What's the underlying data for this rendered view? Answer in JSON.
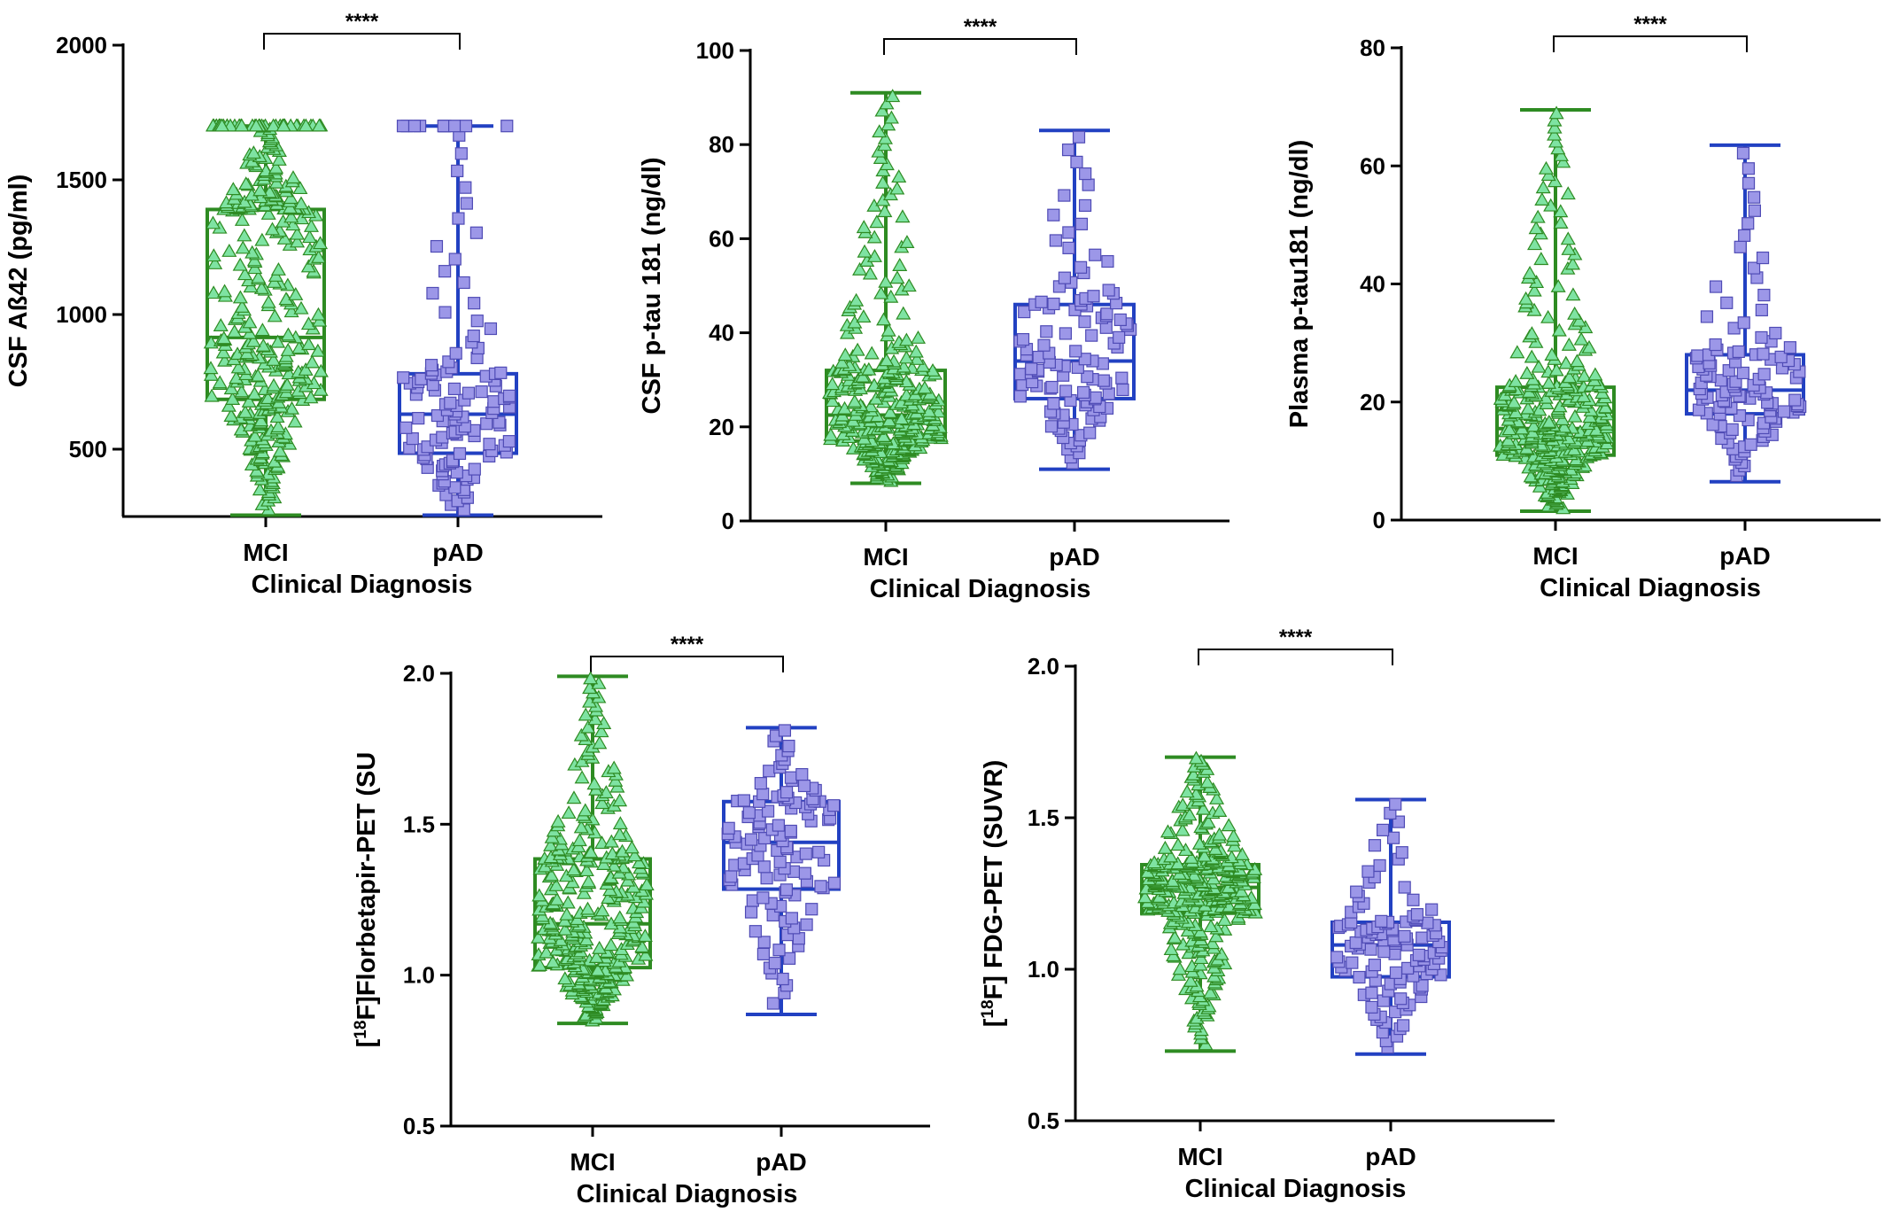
{
  "colors": {
    "mci_fill": "#7ee3a2",
    "mci_stroke": "#2e8b22",
    "pad_fill": "#9c97e8",
    "pad_stroke": "#2241c2",
    "axis": "#000000"
  },
  "marker_shapes": {
    "MCI": "triangle",
    "pAD": "square"
  },
  "chart_data": [
    {
      "type": "box",
      "title": "",
      "xlabel": "Clinical Diagnosis",
      "ylabel": "CSF Aß42 (pg/ml)",
      "ylim": [
        250,
        2000
      ],
      "yticks": [
        "500",
        "1000",
        "1500",
        "2000"
      ],
      "categories": [
        "MCI",
        "pAD"
      ],
      "significance": "****",
      "boxes": [
        {
          "category": "MCI",
          "min": 255,
          "q1": 685,
          "median": 915,
          "q3": 1390,
          "max": 1700,
          "n_points": 330
        },
        {
          "category": "pAD",
          "min": 255,
          "q1": 485,
          "median": 630,
          "q3": 780,
          "max": 1700,
          "n_points": 115
        }
      ]
    },
    {
      "type": "box",
      "title": "",
      "xlabel": "Clinical Diagnosis",
      "ylabel": "CSF p-tau 181 (ng/dl)",
      "ylim": [
        0,
        100
      ],
      "yticks": [
        "0",
        "20",
        "40",
        "60",
        "80",
        "100"
      ],
      "categories": [
        "MCI",
        "pAD"
      ],
      "significance": "****",
      "boxes": [
        {
          "category": "MCI",
          "min": 8,
          "q1": 17,
          "median": 22.5,
          "q3": 32,
          "max": 91,
          "n_points": 330
        },
        {
          "category": "pAD",
          "min": 11,
          "q1": 26,
          "median": 34,
          "q3": 46,
          "max": 83,
          "n_points": 115
        }
      ]
    },
    {
      "type": "box",
      "title": "",
      "xlabel": "Clinical Diagnosis",
      "ylabel": "Plasma p-tau181 (ng/dl)",
      "ylim": [
        0,
        80
      ],
      "yticks": [
        "0",
        "20",
        "40",
        "60",
        "80"
      ],
      "categories": [
        "MCI",
        "pAD"
      ],
      "significance": "****",
      "boxes": [
        {
          "category": "MCI",
          "min": 1.5,
          "q1": 11,
          "median": 15.5,
          "q3": 22.5,
          "max": 69.5,
          "n_points": 330
        },
        {
          "category": "pAD",
          "min": 6.5,
          "q1": 18,
          "median": 22,
          "q3": 28,
          "max": 63.5,
          "n_points": 115
        }
      ]
    },
    {
      "type": "box",
      "title": "",
      "xlabel": "Clinical Diagnosis",
      "ylabel": "[18F]Florbetapir-PET (SU",
      "ylabel_parts": {
        "open": "[",
        "sup": "18",
        "rest": "F]Florbetapir-PET (SU"
      },
      "ylim": [
        0.5,
        2.0
      ],
      "yticks": [
        "0.5",
        "1.0",
        "1.5",
        "2.0"
      ],
      "categories": [
        "MCI",
        "pAD"
      ],
      "significance": "****",
      "boxes": [
        {
          "category": "MCI",
          "min": 0.84,
          "q1": 1.025,
          "median": 1.17,
          "q3": 1.385,
          "max": 1.99,
          "n_points": 330
        },
        {
          "category": "pAD",
          "min": 0.87,
          "q1": 1.285,
          "median": 1.44,
          "q3": 1.575,
          "max": 1.82,
          "n_points": 115
        }
      ]
    },
    {
      "type": "box",
      "title": "",
      "xlabel": "Clinical Diagnosis",
      "ylabel": "[18F] FDG-PET (SUVR)",
      "ylabel_parts": {
        "open": "[",
        "sup": "18",
        "rest": "F] FDG-PET (SUVR)"
      },
      "ylim": [
        0.5,
        2.0
      ],
      "yticks": [
        "0.5",
        "1.0",
        "1.5",
        "2.0"
      ],
      "categories": [
        "MCI",
        "pAD"
      ],
      "significance": "****",
      "boxes": [
        {
          "category": "MCI",
          "min": 0.73,
          "q1": 1.185,
          "median": 1.27,
          "q3": 1.345,
          "max": 1.7,
          "n_points": 330
        },
        {
          "category": "pAD",
          "min": 0.72,
          "q1": 0.975,
          "median": 1.08,
          "q3": 1.155,
          "max": 1.56,
          "n_points": 115
        }
      ]
    }
  ]
}
